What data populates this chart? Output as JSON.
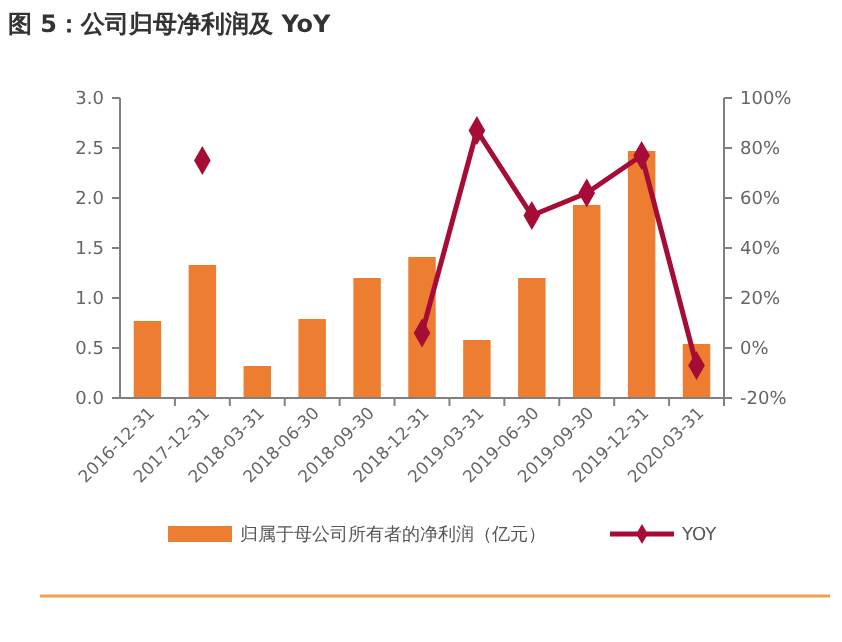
{
  "chart_data": {
    "type": "bar",
    "title": "图 5：公司归母净利润及 YoY",
    "categories": [
      "2016-12-31",
      "2017-12-31",
      "2018-03-31",
      "2018-06-30",
      "2018-09-30",
      "2018-12-31",
      "2019-03-31",
      "2019-06-30",
      "2019-09-30",
      "2019-12-31",
      "2020-03-31"
    ],
    "series": [
      {
        "name": "归属于母公司所有者的净利润（亿元）",
        "color": "#ed7d31",
        "values": [
          0.77,
          1.33,
          0.32,
          0.79,
          1.2,
          1.41,
          0.58,
          1.2,
          1.93,
          2.47,
          0.54
        ]
      },
      {
        "name": "YOY",
        "type": "line",
        "axis": "y2",
        "color": "#a50d36",
        "marker": "diamond",
        "values": [
          null,
          75,
          null,
          null,
          null,
          6,
          87,
          53,
          62,
          77,
          -7
        ]
      }
    ],
    "ylim": [
      0,
      3
    ],
    "yticks": [
      {
        "value": 0,
        "label": "0.0"
      },
      {
        "value": 0.5,
        "label": "0.5"
      },
      {
        "value": 1,
        "label": "1.0"
      },
      {
        "value": 1.5,
        "label": "1.5"
      },
      {
        "value": 2,
        "label": "2.0"
      },
      {
        "value": 2.5,
        "label": "2.5"
      },
      {
        "value": 3,
        "label": "3.0"
      }
    ],
    "y2lim": [
      -20,
      100
    ],
    "y2ticks": [
      {
        "value": -20,
        "label": "-20%"
      },
      {
        "value": 0,
        "label": "0%"
      },
      {
        "value": 20,
        "label": "20%"
      },
      {
        "value": 40,
        "label": "40%"
      },
      {
        "value": 60,
        "label": "60%"
      },
      {
        "value": 80,
        "label": "80%"
      },
      {
        "value": 100,
        "label": "100%"
      }
    ],
    "legend": "bottom",
    "grid": false
  }
}
